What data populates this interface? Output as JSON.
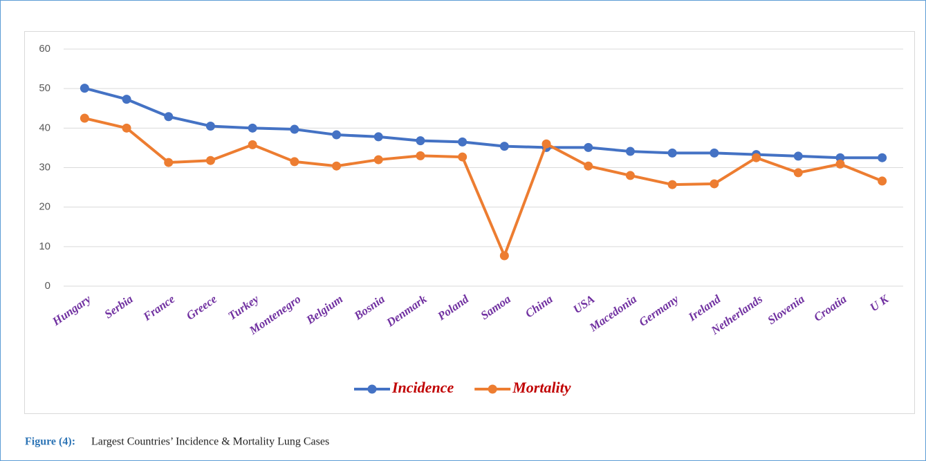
{
  "chart_data": {
    "type": "line",
    "categories": [
      "Hungary",
      "Serbia",
      "France",
      "Greece",
      "Turkey",
      "Montenegro",
      "Belgium",
      "Bosnia",
      "Denmark",
      "Poland",
      "Samoa",
      "China",
      "USA",
      "Macedonia",
      "Germany",
      "Ireland",
      "Netherlands",
      "Slovenia",
      "Croatia",
      "U K"
    ],
    "series": [
      {
        "name": "Incidence",
        "color": "#4472c4",
        "values": [
          50.1,
          47.3,
          42.9,
          40.5,
          40.0,
          39.7,
          38.3,
          37.8,
          36.8,
          36.5,
          35.4,
          35.1,
          35.1,
          34.1,
          33.7,
          33.7,
          33.3,
          32.9,
          32.5,
          32.5
        ]
      },
      {
        "name": "Mortality",
        "color": "#ed7d31",
        "values": [
          42.5,
          40.0,
          31.3,
          31.8,
          35.8,
          31.5,
          30.4,
          32.0,
          33.0,
          32.7,
          7.7,
          36.0,
          30.4,
          28.0,
          25.7,
          25.9,
          32.5,
          28.7,
          30.9,
          26.6
        ]
      }
    ],
    "ylim": [
      0,
      60
    ],
    "yticks": [
      0,
      10,
      20,
      30,
      40,
      50,
      60
    ],
    "grid": true,
    "legend": "bottom"
  },
  "caption": {
    "label": "Figure (4):",
    "text": "Largest Countries’ Incidence & Mortality Lung Cases"
  }
}
